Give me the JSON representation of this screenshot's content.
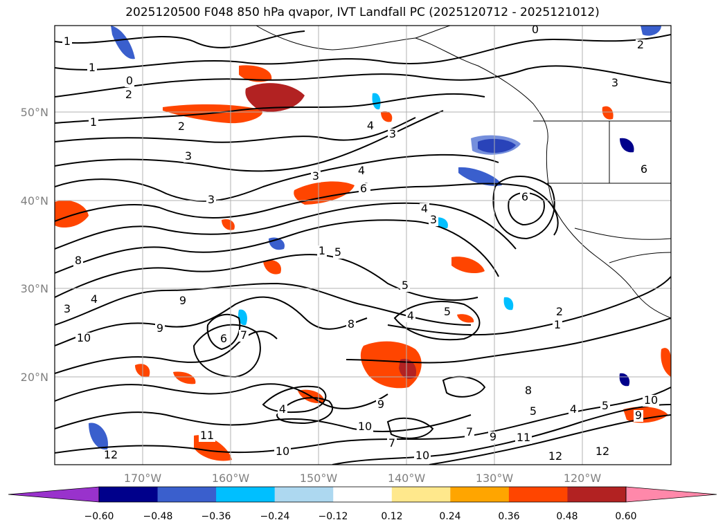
{
  "title": "2025120500 F048 850 hPa qvapor, IVT Landfall PC (2025120712 - 2025121012)",
  "lat_labels": [
    "50°N",
    "40°N",
    "30°N",
    "20°N"
  ],
  "lon_labels": [
    "170°W",
    "160°W",
    "150°W",
    "140°W",
    "130°W",
    "120°W"
  ],
  "colorbar": {
    "colors": [
      "#9932cc",
      "#00008b",
      "#3a5fcd",
      "#00bfff",
      "#add8f0",
      "#ffffff",
      "#ffe88c",
      "#ffa500",
      "#ff4500",
      "#b22222",
      "#ff88aa"
    ],
    "tick_labels": [
      "−0.60",
      "−0.48",
      "−0.36",
      "−0.24",
      "−0.12",
      "0.12",
      "0.24",
      "0.36",
      "0.48",
      "0.60"
    ]
  },
  "contour_labels": [
    "1",
    "1",
    "0",
    "2",
    "1",
    "2",
    "3",
    "3",
    "4",
    "3",
    "4",
    "6",
    "4",
    "3",
    "6",
    "5",
    "1",
    "8",
    "3",
    "4",
    "10",
    "9",
    "9",
    "8",
    "7",
    "6",
    "4",
    "9",
    "10",
    "7",
    "10",
    "11",
    "12",
    "5",
    "5",
    "1",
    "2",
    "7",
    "8",
    "9",
    "10",
    "11",
    "12",
    "10",
    "9",
    "12",
    "0",
    "2",
    "3",
    "6",
    "4",
    "6",
    "3",
    "5",
    "4",
    "5"
  ]
}
